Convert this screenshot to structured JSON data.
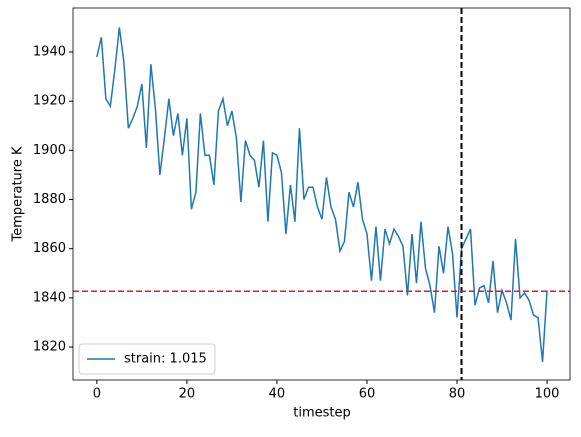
{
  "chart_data": {
    "type": "line",
    "xlabel": "timestep",
    "ylabel": "Temperature K",
    "x": [
      0,
      1,
      2,
      3,
      4,
      5,
      6,
      7,
      8,
      9,
      10,
      11,
      12,
      13,
      14,
      15,
      16,
      17,
      18,
      19,
      20,
      21,
      22,
      23,
      24,
      25,
      26,
      27,
      28,
      29,
      30,
      31,
      32,
      33,
      34,
      35,
      36,
      37,
      38,
      39,
      40,
      41,
      42,
      43,
      44,
      45,
      46,
      47,
      48,
      49,
      50,
      51,
      52,
      53,
      54,
      55,
      56,
      57,
      58,
      59,
      60,
      61,
      62,
      63,
      64,
      65,
      66,
      67,
      68,
      69,
      70,
      71,
      72,
      73,
      74,
      75,
      76,
      77,
      78,
      79,
      80,
      81,
      82,
      83,
      84,
      85,
      86,
      87,
      88,
      89,
      90,
      91,
      92,
      93,
      94,
      95,
      96,
      97,
      98,
      99,
      100
    ],
    "series": [
      {
        "name": "strain: 1.015",
        "color": "#1f77b4",
        "values": [
          1938,
          1946,
          1921,
          1918,
          1933,
          1950,
          1936,
          1909,
          1913,
          1918,
          1927,
          1901,
          1935,
          1917,
          1890,
          1905,
          1921,
          1906,
          1915,
          1898,
          1913,
          1876,
          1883,
          1915,
          1898,
          1898,
          1886,
          1916,
          1921,
          1910,
          1916,
          1905,
          1879,
          1904,
          1898,
          1896,
          1885,
          1904,
          1871,
          1899,
          1898,
          1891,
          1866,
          1886,
          1871,
          1909,
          1880,
          1885,
          1885,
          1877,
          1872,
          1889,
          1877,
          1872,
          1859,
          1863,
          1883,
          1877,
          1887,
          1872,
          1866,
          1847,
          1869,
          1847,
          1868,
          1862,
          1868,
          1865,
          1861,
          1841,
          1866,
          1846,
          1871,
          1852,
          1845,
          1834,
          1861,
          1850,
          1869,
          1858,
          1832,
          1860,
          1864,
          1868,
          1837,
          1844,
          1845,
          1838,
          1855,
          1834,
          1843,
          1838,
          1831,
          1864,
          1840,
          1842,
          1839,
          1833,
          1832,
          1814,
          1843
        ]
      }
    ],
    "xlim": [
      -5.3,
      105.1
    ],
    "ylim": [
      1806.6,
      1957.9
    ],
    "xticks": [
      0,
      20,
      40,
      60,
      80,
      100
    ],
    "yticks": [
      1820,
      1840,
      1860,
      1880,
      1900,
      1920,
      1940
    ],
    "vline": {
      "value": 81,
      "color": "#000000"
    },
    "hline": {
      "value": 1842.7,
      "color": "#e41a1c"
    },
    "legend": "lower left"
  }
}
